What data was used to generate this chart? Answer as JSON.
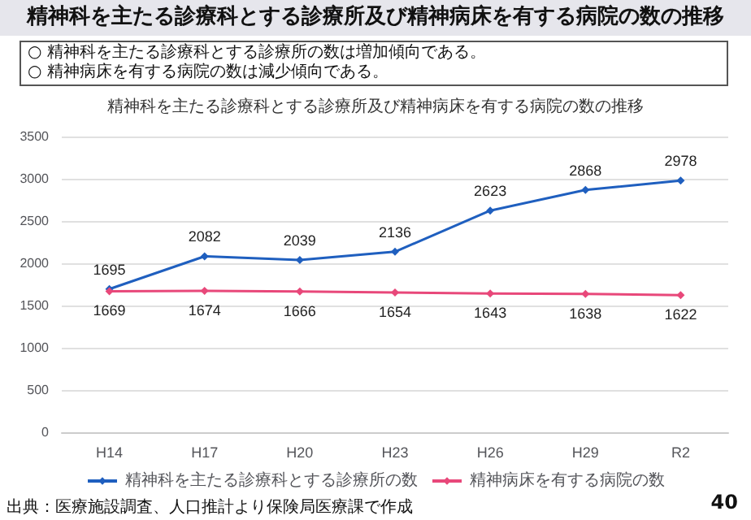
{
  "chart_data": {
    "type": "line",
    "title": "精神科を主たる診療科とする診療所及び精神病床を有する病院の数の推移",
    "subtitle": "精神科を主たる診療科とする診療所及び精神病床を有する病院の数の推移",
    "annotations": [
      "○ 精神科を主たる診療科とする診療所の数は増加傾向である。",
      "○ 精神病床を有する病院の数は減少傾向である。",
      "出典：医療施設調査、人口推計より保険局医療課で作成",
      "40"
    ],
    "categories": [
      "H14",
      "H17",
      "H20",
      "H23",
      "H26",
      "H29",
      "R2"
    ],
    "series": [
      {
        "name": "精神科を主たる診療科とする診療所の数",
        "color": "#1f5fbf",
        "values": [
          1695,
          2082,
          2039,
          2136,
          2623,
          2868,
          2978
        ]
      },
      {
        "name": "精神病床を有する病院の数",
        "color": "#e8487a",
        "values": [
          1669,
          1674,
          1666,
          1654,
          1643,
          1638,
          1622
        ]
      }
    ],
    "ylim": [
      0,
      3500
    ],
    "yticks": [
      0,
      500,
      1000,
      1500,
      2000,
      2500,
      3000,
      3500
    ],
    "grid": "y",
    "legend": "bottom",
    "marker": "diamond",
    "line_style": "solid",
    "data_labels": true
  }
}
